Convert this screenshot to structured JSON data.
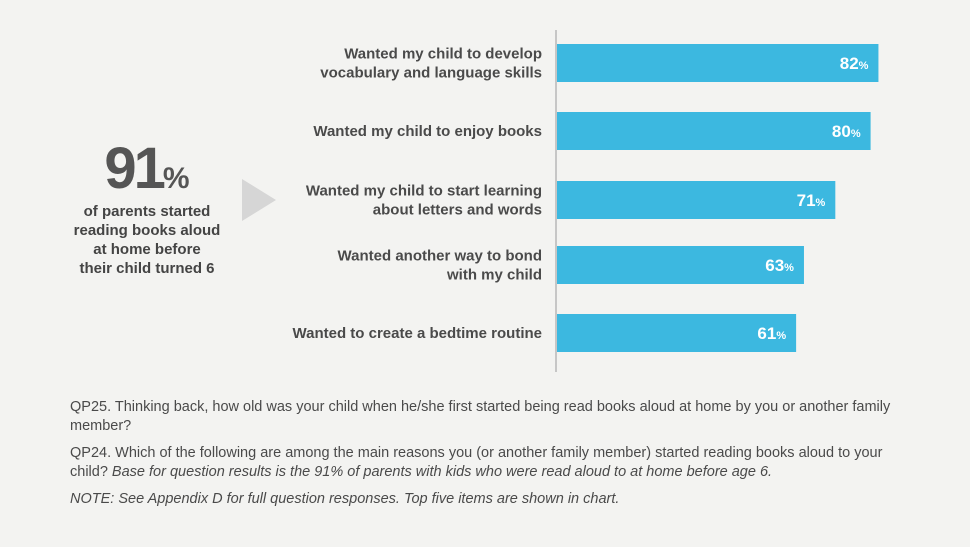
{
  "callout": {
    "stat_number": "91",
    "stat_unit": "%",
    "text": "of parents started\nreading books aloud\nat home before\ntheir child turned 6"
  },
  "notes": {
    "q25": "QP25. Thinking back, how old was your child when he/she first started being read books aloud at home by you or another family member?",
    "q24": "QP24. Which of the following are among the main reasons you (or another family member) started reading books aloud to your child?",
    "q24_base": "Base for question results is the 91% of parents with kids who were read aloud to at home before age 6.",
    "note": "NOTE: See Appendix D for full question responses. Top five items are shown in chart."
  },
  "chart_data": {
    "type": "bar",
    "orientation": "horizontal",
    "categories": [
      [
        "Wanted my child to develop",
        "vocabulary and language skills"
      ],
      [
        "Wanted my child to enjoy books"
      ],
      [
        "Wanted my child to start learning",
        "about letters and words"
      ],
      [
        "Wanted another way to bond",
        "with my child"
      ],
      [
        "Wanted to create a bedtime routine"
      ]
    ],
    "values": [
      82,
      80,
      71,
      63,
      61
    ],
    "value_suffix": "%",
    "xlim": [
      0,
      100
    ],
    "bar_color": "#3cb8e0",
    "axis_color": "#9a9a9a",
    "grid": false,
    "legend": "none"
  }
}
